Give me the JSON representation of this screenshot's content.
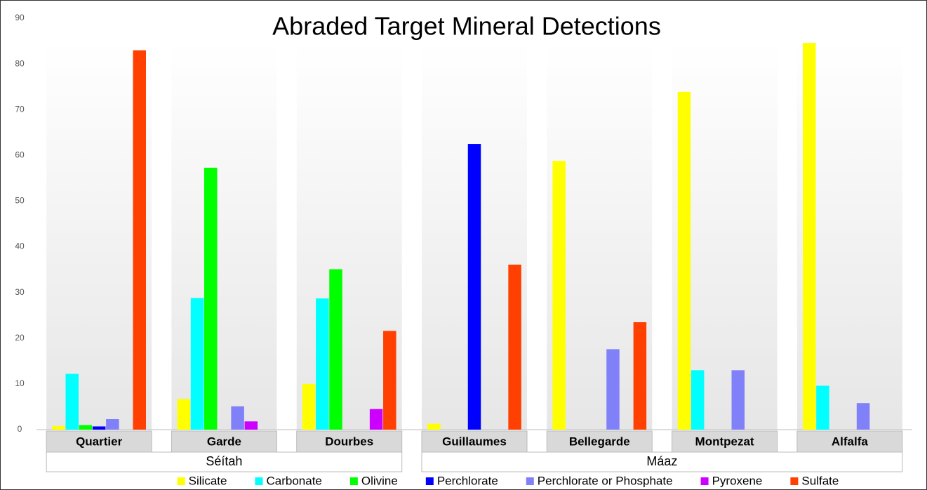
{
  "chart_data": {
    "type": "bar",
    "title": "Abraded Target Mineral Detections",
    "categories": [
      "Quartier",
      "Garde",
      "Dourbes",
      "Guillaumes",
      "Bellegarde",
      "Montpezat",
      "Alfalfa"
    ],
    "groups": [
      {
        "name": "Séítah",
        "categories": [
          "Quartier",
          "Garde",
          "Dourbes"
        ]
      },
      {
        "name": "Máaz",
        "categories": [
          "Guillaumes",
          "Bellegarde",
          "Montpezat",
          "Alfalfa"
        ]
      }
    ],
    "series": [
      {
        "name": "Silicate",
        "color": "#ffff00",
        "values": [
          0.8,
          6.7,
          10,
          1.3,
          58.8,
          73.9,
          84.6
        ]
      },
      {
        "name": "Carbonate",
        "color": "#00ffff",
        "values": [
          12.2,
          28.8,
          28.7,
          0,
          0,
          13,
          9.6
        ]
      },
      {
        "name": "Olivine",
        "color": "#00ff00",
        "values": [
          1,
          57.3,
          35.1,
          0,
          0,
          0,
          0
        ]
      },
      {
        "name": "Perchlorate",
        "color": "#0000ff",
        "values": [
          0.7,
          0,
          0,
          62.5,
          0,
          0,
          0
        ]
      },
      {
        "name": "Perchlorate or Phosphate",
        "color": "#8080f8",
        "values": [
          2.3,
          5.1,
          0,
          0,
          17.6,
          13,
          5.8
        ]
      },
      {
        "name": "Pyroxene",
        "color": "#cc00ff",
        "values": [
          0,
          1.8,
          4.5,
          0,
          0,
          0,
          0
        ]
      },
      {
        "name": "Sulfate",
        "color": "#ff4000",
        "values": [
          83,
          0,
          21.6,
          36.1,
          23.5,
          0,
          0
        ]
      }
    ],
    "ylim": [
      0,
      90
    ],
    "yticks": [
      0,
      10,
      20,
      30,
      40,
      50,
      60,
      70,
      80,
      90
    ],
    "legend": "bottom"
  }
}
